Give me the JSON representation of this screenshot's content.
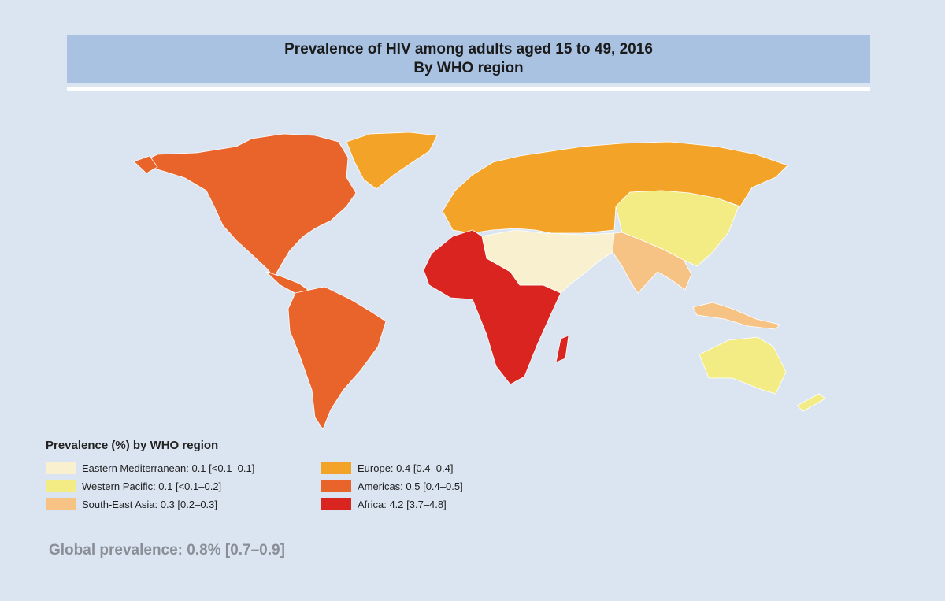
{
  "title": {
    "line1": "Prevalence of HIV among adults aged 15 to 49, 2016",
    "line2": "By WHO region"
  },
  "colors": {
    "background": "#dbe5f2",
    "ocean": "#dbe5f2",
    "title_bar": "#a9c2e1",
    "Eastern Mediterranean": "#f8f0cf",
    "Western Pacific": "#f3ec85",
    "South-East Asia": "#f6c384",
    "Europe": "#f3a328",
    "Americas": "#e8642a",
    "Africa": "#d9241f"
  },
  "legend": {
    "heading": "Prevalence (%) by WHO region",
    "items": [
      {
        "region": "Eastern Mediterranean",
        "label": "Eastern Mediterranean: 0.1 [<0.1–0.1]",
        "value": 0.1,
        "color": "#f8f0cf"
      },
      {
        "region": "Europe",
        "label": "Europe: 0.4 [0.4–0.4]",
        "value": 0.4,
        "color": "#f3a328"
      },
      {
        "region": "Western Pacific",
        "label": "Western Pacific: 0.1 [<0.1–0.2]",
        "value": 0.1,
        "color": "#f3ec85"
      },
      {
        "region": "Americas",
        "label": "Americas: 0.5 [0.4–0.5]",
        "value": 0.5,
        "color": "#e8642a"
      },
      {
        "region": "South-East Asia",
        "label": "South-East Asia: 0.3 [0.2–0.3]",
        "value": 0.3,
        "color": "#f6c384"
      },
      {
        "region": "Africa",
        "label": "Africa: 4.2 [3.7–4.8]",
        "value": 4.2,
        "color": "#d9241f"
      }
    ]
  },
  "global": {
    "label": "Global prevalence: 0.8% [0.7–0.9]"
  }
}
